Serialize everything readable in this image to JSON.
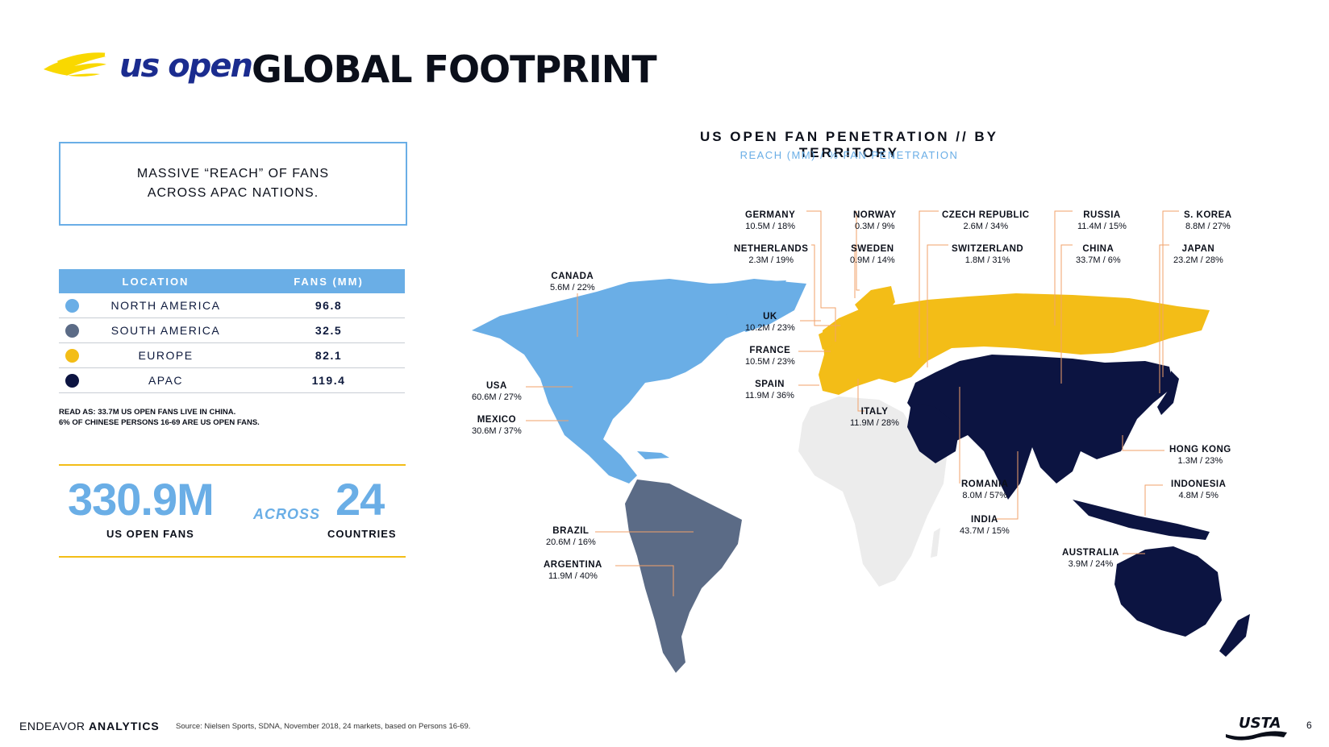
{
  "header": {
    "logo_text": "us open",
    "title": "GLOBAL FOOTPRINT"
  },
  "callout": {
    "line1": "MASSIVE “REACH” OF FANS",
    "line2": "ACROSS APAC NATIONS."
  },
  "table": {
    "col_location": "LOCATION",
    "col_fans": "FANS (MM)",
    "rows": [
      {
        "location": "NORTH AMERICA",
        "fans": "96.8",
        "color": "#6aaee6"
      },
      {
        "location": "SOUTH AMERICA",
        "fans": "32.5",
        "color": "#5b6b86"
      },
      {
        "location": "EUROPE",
        "fans": "82.1",
        "color": "#f3bd17"
      },
      {
        "location": "APAC",
        "fans": "119.4",
        "color": "#0c1441"
      }
    ]
  },
  "note": {
    "line1": "READ AS: 33.7M US OPEN FANS LIVE IN CHINA.",
    "line2": "6% OF CHINESE PERSONS 16-69 ARE US OPEN FANS."
  },
  "stats": {
    "fans_value": "330.9M",
    "fans_label": "US OPEN FANS",
    "across": "ACROSS",
    "countries_value": "24",
    "countries_label": "COUNTRIES"
  },
  "map": {
    "title": "US OPEN FAN PENETRATION // BY TERRITORY",
    "subtitle": "REACH (MM) / % FAN PENETRATION",
    "territories": {
      "canada": {
        "name": "CANADA",
        "value": "5.6M / 22%"
      },
      "usa": {
        "name": "USA",
        "value": "60.6M / 27%"
      },
      "mexico": {
        "name": "MEXICO",
        "value": "30.6M / 37%"
      },
      "brazil": {
        "name": "BRAZIL",
        "value": "20.6M / 16%"
      },
      "argentina": {
        "name": "ARGENTINA",
        "value": "11.9M / 40%"
      },
      "germany": {
        "name": "GERMANY",
        "value": "10.5M / 18%"
      },
      "netherlands": {
        "name": "NETHERLANDS",
        "value": "2.3M / 19%"
      },
      "uk": {
        "name": "UK",
        "value": "10.2M / 23%"
      },
      "france": {
        "name": "FRANCE",
        "value": "10.5M / 23%"
      },
      "spain": {
        "name": "SPAIN",
        "value": "11.9M / 36%"
      },
      "norway": {
        "name": "NORWAY",
        "value": "0.3M / 9%"
      },
      "sweden": {
        "name": "SWEDEN",
        "value": "0.9M / 14%"
      },
      "italy": {
        "name": "ITALY",
        "value": "11.9M / 28%"
      },
      "czech": {
        "name": "CZECH REPUBLIC",
        "value": "2.6M / 34%"
      },
      "switzerland": {
        "name": "SWITZERLAND",
        "value": "1.8M / 31%"
      },
      "romania": {
        "name": "ROMANIA",
        "value": "8.0M / 57%"
      },
      "india": {
        "name": "INDIA",
        "value": "43.7M / 15%"
      },
      "russia": {
        "name": "RUSSIA",
        "value": "11.4M / 15%"
      },
      "china": {
        "name": "CHINA",
        "value": "33.7M / 6%"
      },
      "skorea": {
        "name": "S. KOREA",
        "value": "8.8M / 27%"
      },
      "japan": {
        "name": "JAPAN",
        "value": "23.2M / 28%"
      },
      "hongkong": {
        "name": "HONG KONG",
        "value": "1.3M / 23%"
      },
      "indonesia": {
        "name": "INDONESIA",
        "value": "4.8M / 5%"
      },
      "australia": {
        "name": "AUSTRALIA",
        "value": "3.9M / 24%"
      }
    },
    "colors": {
      "north_america": "#6aaee6",
      "south_america": "#5b6b86",
      "europe": "#f3bd17",
      "apac": "#0c1441",
      "other": "#ececec",
      "leader": "#f2a26a"
    }
  },
  "footer": {
    "brand_light": "ENDEAVOR",
    "brand_bold": "ANALYTICS",
    "source": "Source:  Nielsen Sports, SDNA, November 2018, 24 markets, based on Persons 16-69.",
    "usta": "USTA",
    "page_number": "6"
  }
}
